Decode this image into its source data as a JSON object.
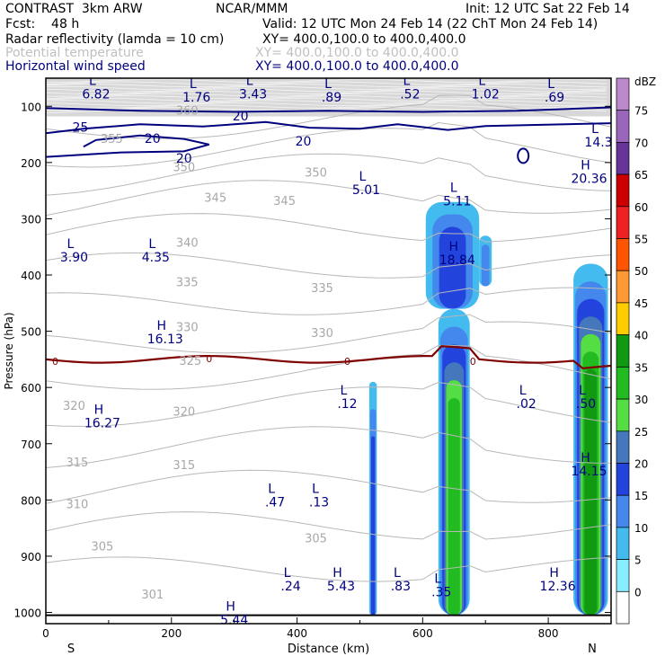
{
  "header": {
    "model": "CONTRAST  3km ARW",
    "org": "NCAR/MMM",
    "init": "Init: 12 UTC Sat 22 Feb 14",
    "fcst": "Fcst:    48 h",
    "valid": "Valid: 12 UTC Mon 24 Feb 14 (22 ChT Mon 24 Feb 14)",
    "fields": [
      {
        "name": "Radar reflectivity (lamda = 10 cm)",
        "xy": "XY= 400.0,100.0 to 400.0,400.0",
        "color": "#000000"
      },
      {
        "name": "Potential temperature",
        "xy": "XY= 400.0,100.0 to 400.0,400.0",
        "color": "#c0c0c0"
      },
      {
        "name": "Horizontal wind speed",
        "xy": "XY= 400.0,100.0 to 400.0,400.0",
        "color": "#00007f"
      }
    ]
  },
  "chart_data": {
    "type": "cross-section",
    "xlabel": "Distance (km)",
    "ylabel": "Pressure (hPa)",
    "xlim": [
      0,
      900
    ],
    "ylim": [
      1020,
      50
    ],
    "xticks": [
      0,
      200,
      400,
      600,
      800
    ],
    "yticks": [
      100,
      200,
      300,
      400,
      500,
      600,
      700,
      800,
      900,
      1000
    ],
    "endpoints": {
      "left": "S",
      "right": "N"
    },
    "colorbar": {
      "unit": "dBZ",
      "levels": [
        "75",
        "70",
        "65",
        "60",
        "55",
        "50",
        "45",
        "40",
        "35",
        "30",
        "25",
        "20",
        "15",
        "10",
        "5",
        "0"
      ],
      "colors": [
        "#bb88cc",
        "#9966bb",
        "#663399",
        "#cc0000",
        "#ee2222",
        "#ff5500",
        "#ff9933",
        "#ffcc00",
        "#119911",
        "#22bb22",
        "#55dd44",
        "#4477bb",
        "#2244dd",
        "#4488ee",
        "#44bbee",
        "#88eeff",
        "#ffffff"
      ]
    },
    "theta_labels": [
      {
        "text": "355",
        "x": 105,
        "p": 165
      },
      {
        "text": "350",
        "x": 220,
        "p": 215
      },
      {
        "text": "350",
        "x": 430,
        "p": 225
      },
      {
        "text": "345",
        "x": 270,
        "p": 270
      },
      {
        "text": "345",
        "x": 380,
        "p": 275
      },
      {
        "text": "340",
        "x": 225,
        "p": 350
      },
      {
        "text": "335",
        "x": 225,
        "p": 420
      },
      {
        "text": "335",
        "x": 440,
        "p": 430
      },
      {
        "text": "330",
        "x": 225,
        "p": 500
      },
      {
        "text": "330",
        "x": 440,
        "p": 510
      },
      {
        "text": "325",
        "x": 230,
        "p": 560
      },
      {
        "text": "320",
        "x": 45,
        "p": 640
      },
      {
        "text": "320",
        "x": 220,
        "p": 650
      },
      {
        "text": "315",
        "x": 50,
        "p": 740
      },
      {
        "text": "315",
        "x": 220,
        "p": 745
      },
      {
        "text": "310",
        "x": 50,
        "p": 815
      },
      {
        "text": "305",
        "x": 90,
        "p": 890
      },
      {
        "text": "305",
        "x": 430,
        "p": 875
      },
      {
        "text": "301",
        "x": 170,
        "p": 975
      },
      {
        "text": "360",
        "x": 225,
        "p": 115
      }
    ],
    "wind_labels": [
      {
        "text": "25",
        "x": 55,
        "p": 145
      },
      {
        "text": "20",
        "x": 170,
        "p": 165
      },
      {
        "text": "20",
        "x": 220,
        "p": 200
      },
      {
        "text": "20",
        "x": 310,
        "p": 125
      },
      {
        "text": "20",
        "x": 410,
        "p": 170
      },
      {
        "text": "0",
        "x": 15,
        "p": 560
      },
      {
        "text": "0",
        "x": 260,
        "p": 555
      },
      {
        "text": "0",
        "x": 480,
        "p": 560
      },
      {
        "text": "0",
        "x": 680,
        "p": 560
      }
    ],
    "extrema": [
      {
        "kind": "L",
        "value": "6.82",
        "x": 80,
        "p": 75
      },
      {
        "kind": "L",
        "value": "1.76",
        "x": 240,
        "p": 80
      },
      {
        "kind": "L",
        "value": "3.43",
        "x": 330,
        "p": 75
      },
      {
        "kind": "L",
        "value": ".89",
        "x": 455,
        "p": 80
      },
      {
        "kind": "L",
        "value": ".52",
        "x": 580,
        "p": 75
      },
      {
        "kind": "L",
        "value": "1.02",
        "x": 700,
        "p": 75
      },
      {
        "kind": "L",
        "value": ".69",
        "x": 810,
        "p": 80
      },
      {
        "kind": "L",
        "value": "14.3",
        "x": 880,
        "p": 160
      },
      {
        "kind": "H",
        "value": "20.36",
        "x": 865,
        "p": 225
      },
      {
        "kind": "L",
        "value": "5.01",
        "x": 510,
        "p": 245
      },
      {
        "kind": "L",
        "value": "5.11",
        "x": 655,
        "p": 265
      },
      {
        "kind": "L",
        "value": "3.90",
        "x": 45,
        "p": 365
      },
      {
        "kind": "L",
        "value": "4.35",
        "x": 175,
        "p": 365
      },
      {
        "kind": "H",
        "value": "18.84",
        "x": 655,
        "p": 370
      },
      {
        "kind": "H",
        "value": "16.13",
        "x": 190,
        "p": 510
      },
      {
        "kind": "L",
        "value": ".12",
        "x": 480,
        "p": 625
      },
      {
        "kind": "L",
        "value": ".02",
        "x": 765,
        "p": 625
      },
      {
        "kind": "L",
        "value": ".50",
        "x": 860,
        "p": 625
      },
      {
        "kind": "H",
        "value": "16.27",
        "x": 90,
        "p": 660
      },
      {
        "kind": "H",
        "value": "14.15",
        "x": 865,
        "p": 745
      },
      {
        "kind": "L",
        "value": ".47",
        "x": 365,
        "p": 800
      },
      {
        "kind": "L",
        "value": ".13",
        "x": 435,
        "p": 800
      },
      {
        "kind": "L",
        "value": ".24",
        "x": 390,
        "p": 950
      },
      {
        "kind": "H",
        "value": "5.43",
        "x": 470,
        "p": 950
      },
      {
        "kind": "L",
        "value": ".83",
        "x": 565,
        "p": 950
      },
      {
        "kind": "L",
        "value": ".35",
        "x": 630,
        "p": 960
      },
      {
        "kind": "H",
        "value": "12.36",
        "x": 815,
        "p": 950
      },
      {
        "kind": "H",
        "value": "5.44",
        "x": 300,
        "p": 1010
      }
    ],
    "freezing_level_hPa": 550,
    "radar_cells": [
      {
        "name": "cell-520km",
        "x0": 515,
        "x1": 527,
        "pTop": 590,
        "pBot": 1005,
        "maxDbz": "15"
      },
      {
        "name": "cell-650km",
        "x0": 625,
        "x1": 675,
        "pTop": 460,
        "pBot": 1005,
        "maxDbz": "30"
      },
      {
        "name": "anvil-650km",
        "x0": 605,
        "x1": 690,
        "pTop": 270,
        "pBot": 460,
        "maxDbz": "15"
      },
      {
        "name": "anvil-700km",
        "x0": 690,
        "x1": 710,
        "pTop": 330,
        "pBot": 420,
        "maxDbz": "10"
      },
      {
        "name": "cell-870km",
        "x0": 840,
        "x1": 895,
        "pTop": 380,
        "pBot": 1005,
        "maxDbz": "35"
      }
    ]
  }
}
